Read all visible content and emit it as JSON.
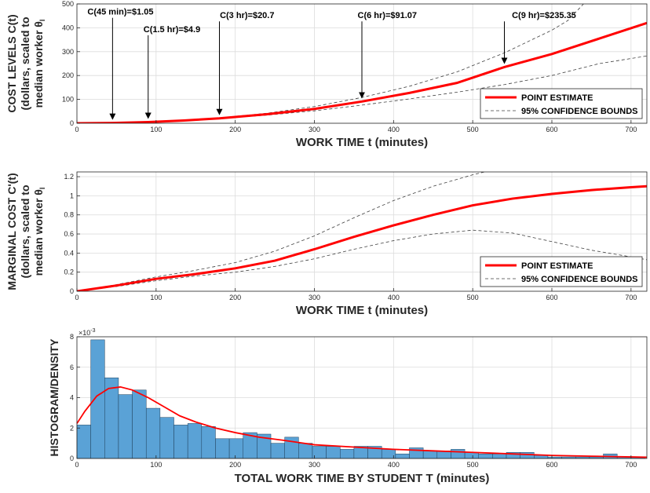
{
  "colors": {
    "point": "#ff0000",
    "bounds": "#404040",
    "hist_fill": "#5aa2d6",
    "hist_edge": "#1f3f5a",
    "grid": "#dcdcdc"
  },
  "chart_data": [
    {
      "id": "cost",
      "type": "line",
      "xlabel": "WORK TIME t (minutes)",
      "ylabel": [
        "COST LEVELS C(t)",
        "(dollars, scaled to",
        "median worker θ"
      ],
      "ylabel_subscript": "I",
      "xlim": [
        0,
        720
      ],
      "ylim": [
        0,
        500
      ],
      "xticks": [
        0,
        100,
        200,
        300,
        400,
        500,
        600,
        700
      ],
      "yticks": [
        0,
        100,
        200,
        300,
        400,
        500
      ],
      "grid": true,
      "legend": {
        "position": "bottom-right",
        "entries": [
          "POINT ESTIMATE",
          "95% CONFIDENCE BOUNDS"
        ]
      },
      "series": [
        {
          "name": "POINT ESTIMATE",
          "style": "solid",
          "x": [
            0,
            45,
            90,
            135,
            180,
            240,
            300,
            360,
            420,
            480,
            540,
            600,
            660,
            720
          ],
          "y": [
            0,
            1.05,
            4.9,
            11.5,
            20.7,
            38,
            60,
            91.07,
            127,
            169,
            235.35,
            290,
            355,
            420
          ]
        },
        {
          "name": "95% CONFIDENCE BOUNDS",
          "style": "dashed",
          "x": [
            0,
            45,
            90,
            135,
            180,
            240,
            300,
            360,
            420,
            480,
            540,
            600,
            620,
            640
          ],
          "y": [
            0,
            1.1,
            5.2,
            12.5,
            22.5,
            42,
            70,
            108,
            155,
            215,
            295,
            390,
            430,
            500
          ]
        },
        {
          "name": "95% CONFIDENCE BOUNDS",
          "style": "dashed",
          "x": [
            0,
            45,
            90,
            135,
            180,
            240,
            300,
            360,
            420,
            480,
            540,
            600,
            660,
            720
          ],
          "y": [
            0,
            1.0,
            4.6,
            10.8,
            19.2,
            34,
            52,
            76,
            102,
            130,
            162,
            200,
            250,
            282
          ]
        }
      ],
      "annotations": [
        {
          "text": "C(45 min)=$1.05",
          "x": 45,
          "y": 1.05,
          "label_x": 55,
          "label_y": 455
        },
        {
          "text": "C(1.5 hr)=$4.9",
          "x": 90,
          "y": 4.9,
          "label_x": 120,
          "label_y": 382
        },
        {
          "text": "C(3 hr)=$20.7",
          "x": 180,
          "y": 20.7,
          "label_x": 215,
          "label_y": 440
        },
        {
          "text": "C(6 hr)=$91.07",
          "x": 360,
          "y": 91.07,
          "label_x": 392,
          "label_y": 440
        },
        {
          "text": "C(9 hr)=$235.35",
          "x": 540,
          "y": 235.35,
          "label_x": 590,
          "label_y": 440
        }
      ]
    },
    {
      "id": "marginal",
      "type": "line",
      "xlabel": "WORK TIME t (minutes)",
      "ylabel": [
        "MARGINAL COST C'(t)",
        "(dollars, scaled to",
        "median worker θ"
      ],
      "ylabel_subscript": "I",
      "xlim": [
        0,
        720
      ],
      "ylim": [
        0,
        1.25
      ],
      "xticks": [
        0,
        100,
        200,
        300,
        400,
        500,
        600,
        700
      ],
      "yticks": [
        0,
        0.2,
        0.4,
        0.6,
        0.8,
        1,
        1.2
      ],
      "grid": true,
      "legend": {
        "position": "bottom-right",
        "entries": [
          "POINT ESTIMATE",
          "95% CONFIDENCE BOUNDS"
        ]
      },
      "series": [
        {
          "name": "POINT ESTIMATE",
          "style": "solid",
          "x": [
            0,
            50,
            100,
            150,
            200,
            250,
            300,
            350,
            400,
            450,
            500,
            550,
            600,
            650,
            700,
            720
          ],
          "y": [
            0,
            0.06,
            0.13,
            0.18,
            0.24,
            0.32,
            0.44,
            0.57,
            0.69,
            0.8,
            0.9,
            0.97,
            1.02,
            1.06,
            1.09,
            1.1
          ]
        },
        {
          "name": "95% CONFIDENCE BOUNDS",
          "style": "dashed",
          "x": [
            0,
            50,
            100,
            150,
            200,
            250,
            300,
            350,
            400,
            450,
            500,
            515
          ],
          "y": [
            0,
            0.07,
            0.15,
            0.22,
            0.3,
            0.42,
            0.58,
            0.77,
            0.95,
            1.1,
            1.22,
            1.25
          ]
        },
        {
          "name": "95% CONFIDENCE BOUNDS",
          "style": "dashed",
          "x": [
            0,
            50,
            100,
            150,
            200,
            250,
            300,
            350,
            400,
            450,
            500,
            550,
            600,
            650,
            700,
            720
          ],
          "y": [
            0,
            0.05,
            0.11,
            0.16,
            0.2,
            0.26,
            0.34,
            0.44,
            0.53,
            0.6,
            0.64,
            0.61,
            0.52,
            0.43,
            0.36,
            0.33
          ]
        }
      ]
    },
    {
      "id": "hist",
      "type": "bar",
      "xlabel": "TOTAL WORK TIME BY STUDENT T (minutes)",
      "ylabel": [
        "HISTOGRAM/DENSITY"
      ],
      "xlim": [
        0,
        720
      ],
      "ylim": [
        0,
        0.008
      ],
      "xticks": [
        0,
        100,
        200,
        300,
        400,
        500,
        600,
        700
      ],
      "yticks": [
        0,
        2,
        4,
        6,
        8
      ],
      "ytick_multiplier": "×10",
      "ytick_multiplier_exp": "-3",
      "grid": true,
      "bin_width": 17.5,
      "bins_x0": [
        0,
        17.5,
        35,
        52.5,
        70,
        87.5,
        105,
        122.5,
        140,
        157.5,
        175,
        192.5,
        210,
        227.5,
        245,
        262.5,
        280,
        297.5,
        315,
        332.5,
        350,
        367.5,
        385,
        402.5,
        420,
        437.5,
        455,
        472.5,
        490,
        507.5,
        525,
        542.5,
        560,
        577.5,
        595,
        612.5,
        630,
        647.5,
        665,
        682.5,
        700
      ],
      "bins_density": [
        0.0022,
        0.0078,
        0.0053,
        0.0042,
        0.0045,
        0.0033,
        0.0027,
        0.0022,
        0.0023,
        0.0021,
        0.0013,
        0.0013,
        0.0017,
        0.0016,
        0.001,
        0.0014,
        0.001,
        0.0008,
        0.0008,
        0.0006,
        0.0008,
        0.0008,
        0.0006,
        0.0003,
        0.0007,
        0.0005,
        0.0005,
        0.0006,
        0.0004,
        0.0003,
        0.0003,
        0.0004,
        0.0004,
        0.0002,
        0.0001,
        0.0001,
        0.0001,
        0.0001,
        0.0003,
        0.0001,
        0.0001
      ],
      "density_curve": {
        "x": [
          0,
          10,
          25,
          40,
          55,
          70,
          90,
          110,
          130,
          150,
          175,
          200,
          230,
          260,
          300,
          350,
          400,
          450,
          500,
          550,
          600,
          650,
          700,
          720
        ],
        "y": [
          0.0023,
          0.0031,
          0.0041,
          0.0046,
          0.0047,
          0.0045,
          0.004,
          0.0034,
          0.0028,
          0.0024,
          0.002,
          0.0017,
          0.0014,
          0.0012,
          0.0009,
          0.00075,
          0.0006,
          0.0005,
          0.0004,
          0.0003,
          0.0002,
          0.00015,
          0.0001,
          8e-05
        ]
      }
    }
  ]
}
